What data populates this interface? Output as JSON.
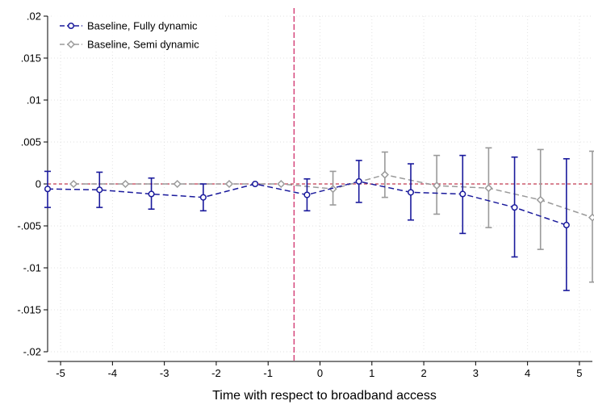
{
  "chart_data": {
    "type": "line",
    "title": "",
    "xlabel": "Time with respect to broadband access",
    "ylabel": "",
    "xlim": [
      -5.25,
      5.25
    ],
    "ylim": [
      -0.02,
      0.02
    ],
    "x_ticks": [
      -5,
      -4,
      -3,
      -2,
      -1,
      0,
      1,
      2,
      3,
      4,
      5
    ],
    "x_tick_labels": [
      "-5",
      "-4",
      "-3",
      "-2",
      "-1",
      "0",
      "1",
      "2",
      "3",
      "4",
      "5"
    ],
    "y_ticks": [
      -0.02,
      -0.015,
      -0.01,
      -0.005,
      0,
      0.005,
      0.01,
      0.015,
      0.02
    ],
    "y_tick_labels": [
      "-.02",
      "-.015",
      "-.01",
      "-.005",
      "0",
      ".005",
      ".01",
      ".015",
      ".02"
    ],
    "grid": true,
    "legend_position": "top-left",
    "reference_lines": {
      "vertical_x": -0.5,
      "vertical_color": "#d6457a",
      "horizontal_y": 0,
      "horizontal_color": "#c23a52"
    },
    "series": [
      {
        "name": "Baseline, Fully dynamic",
        "color": "#1a1a9c",
        "marker": "circle",
        "x": [
          -5.25,
          -4.25,
          -3.25,
          -2.25,
          -1.25,
          -0.25,
          0.75,
          1.75,
          2.75,
          3.75,
          4.75
        ],
        "y": [
          -0.0006,
          -0.0007,
          -0.0012,
          -0.0016,
          0.0,
          -0.0013,
          0.0003,
          -0.001,
          -0.0012,
          -0.0028,
          -0.0049
        ],
        "ci_low": [
          -0.0028,
          -0.0028,
          -0.003,
          -0.0032,
          0.0,
          -0.0032,
          -0.0022,
          -0.0043,
          -0.0059,
          -0.0087,
          -0.0127
        ],
        "ci_high": [
          0.0015,
          0.0014,
          0.0007,
          0.0,
          0.0,
          0.0006,
          0.0028,
          0.0024,
          0.0034,
          0.0032,
          0.003
        ]
      },
      {
        "name": "Baseline, Semi dynamic",
        "color": "#9a9a9a",
        "marker": "diamond",
        "x": [
          -4.75,
          -3.75,
          -2.75,
          -1.75,
          -0.75,
          0.25,
          1.25,
          2.25,
          3.25,
          4.25,
          5.25
        ],
        "y": [
          0.0,
          0.0,
          0.0,
          0.0,
          0.0,
          -0.0006,
          0.0011,
          -0.0002,
          -0.0005,
          -0.0019,
          -0.004
        ],
        "ci_low": [
          0.0,
          0.0,
          0.0,
          0.0,
          0.0,
          -0.0025,
          -0.0016,
          -0.0036,
          -0.0052,
          -0.0078,
          -0.0117
        ],
        "ci_high": [
          0.0,
          0.0,
          0.0,
          0.0,
          0.0,
          0.0015,
          0.0038,
          0.0034,
          0.0043,
          0.0041,
          0.0039
        ]
      }
    ]
  }
}
